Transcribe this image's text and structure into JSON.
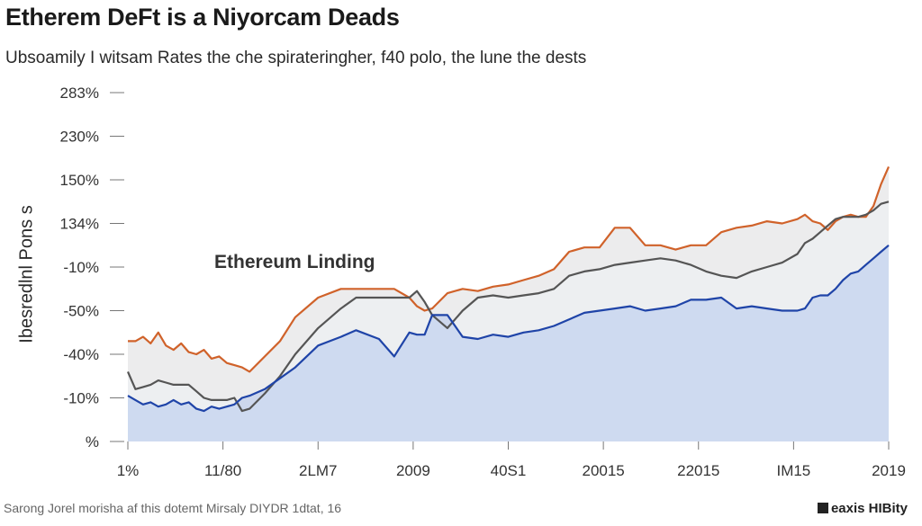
{
  "page": {
    "title": "Etherem DeFt is a Niyorcam Deads",
    "subtitle": "Ubsoamily I witsam Rates the che spirateringher, f40 polo, the lune the dests",
    "source": "Sarong Jorel morisha af this dotemt Mirsaly DIYDR 1dtat, 16",
    "brand": "eaxis HIBity"
  },
  "chart_data": {
    "type": "area",
    "title": "Etherem DeFt is a Niyorcam Deads",
    "subtitle": "Ubsoamily I witsam Rates the che spirateringher, f40 polo, the lune the dests",
    "ylabel": "Ibesredlnl Pons s",
    "xlabel": "",
    "annotation": "Ethereum Linding",
    "ytick_labels": [
      "%",
      "-10%",
      "-40%",
      "-50%",
      "-10%",
      "134%",
      "150%",
      "230%",
      "283%"
    ],
    "xtick_labels": [
      "1%",
      "11/80",
      "2LM7",
      "2009",
      "40S1",
      "20015",
      "22015",
      "IM15",
      "2019"
    ],
    "ylim": [
      0,
      8
    ],
    "xlim": [
      0,
      100
    ],
    "grid": false,
    "colors": {
      "orange": "#d0622a",
      "gray": "#555555",
      "blue": "#1f44a8",
      "blue_fill": "#c9d6ee",
      "orange_fill": "#f2cfc2",
      "gray_fill": "#ebedf0"
    },
    "series": [
      {
        "color": "orange",
        "x": [
          0,
          1,
          2,
          3,
          4,
          5,
          6,
          7,
          8,
          9,
          10,
          11,
          12,
          13,
          14,
          15,
          16,
          18,
          20,
          22,
          25,
          28,
          30,
          33,
          35,
          37,
          38,
          39,
          40,
          42,
          44,
          46,
          48,
          50,
          52,
          54,
          56,
          58,
          60,
          62,
          64,
          66,
          68,
          70,
          72,
          74,
          76,
          78,
          80,
          82,
          84,
          86,
          88,
          89,
          90,
          91,
          92,
          93,
          94,
          95,
          96,
          97,
          98,
          99,
          100
        ],
        "y": [
          2.3,
          2.3,
          2.4,
          2.25,
          2.5,
          2.2,
          2.1,
          2.25,
          2.05,
          2.0,
          2.1,
          1.9,
          1.95,
          1.8,
          1.75,
          1.7,
          1.6,
          1.95,
          2.3,
          2.85,
          3.3,
          3.5,
          3.5,
          3.5,
          3.5,
          3.3,
          3.1,
          3.0,
          3.05,
          3.4,
          3.5,
          3.45,
          3.55,
          3.6,
          3.7,
          3.8,
          3.95,
          4.35,
          4.45,
          4.45,
          4.9,
          4.9,
          4.5,
          4.5,
          4.4,
          4.5,
          4.5,
          4.8,
          4.9,
          4.95,
          5.05,
          5.0,
          5.1,
          5.2,
          5.05,
          5.0,
          4.85,
          5.05,
          5.15,
          5.2,
          5.15,
          5.15,
          5.4,
          5.9,
          6.3
        ]
      },
      {
        "color": "gray",
        "x": [
          0,
          1,
          2,
          3,
          4,
          5,
          6,
          7,
          8,
          9,
          10,
          11,
          12,
          13,
          14,
          15,
          16,
          18,
          20,
          22,
          25,
          28,
          30,
          33,
          35,
          37,
          38,
          39,
          40,
          42,
          44,
          46,
          48,
          50,
          52,
          54,
          56,
          58,
          60,
          62,
          64,
          66,
          68,
          70,
          72,
          74,
          76,
          78,
          80,
          82,
          84,
          86,
          88,
          89,
          90,
          91,
          92,
          93,
          94,
          95,
          96,
          97,
          98,
          99,
          100
        ],
        "y": [
          1.6,
          1.2,
          1.25,
          1.3,
          1.4,
          1.35,
          1.3,
          1.3,
          1.3,
          1.15,
          1.0,
          0.95,
          0.95,
          0.95,
          1.0,
          0.7,
          0.75,
          1.1,
          1.5,
          2.0,
          2.6,
          3.05,
          3.3,
          3.3,
          3.3,
          3.3,
          3.45,
          3.2,
          2.9,
          2.6,
          3.0,
          3.3,
          3.35,
          3.3,
          3.35,
          3.4,
          3.5,
          3.8,
          3.9,
          3.95,
          4.05,
          4.1,
          4.15,
          4.2,
          4.15,
          4.05,
          3.9,
          3.8,
          3.75,
          3.9,
          4.0,
          4.1,
          4.3,
          4.55,
          4.65,
          4.8,
          4.95,
          5.1,
          5.15,
          5.15,
          5.15,
          5.2,
          5.3,
          5.45,
          5.5
        ]
      },
      {
        "color": "blue",
        "x": [
          0,
          1,
          2,
          3,
          4,
          5,
          6,
          7,
          8,
          9,
          10,
          11,
          12,
          13,
          14,
          15,
          16,
          18,
          20,
          22,
          25,
          28,
          30,
          33,
          35,
          37,
          38,
          39,
          40,
          42,
          44,
          46,
          48,
          50,
          52,
          54,
          56,
          58,
          60,
          62,
          64,
          66,
          68,
          70,
          72,
          74,
          76,
          78,
          80,
          82,
          84,
          86,
          88,
          89,
          90,
          91,
          92,
          93,
          94,
          95,
          96,
          97,
          98,
          99,
          100
        ],
        "y": [
          1.05,
          0.95,
          0.85,
          0.9,
          0.8,
          0.85,
          0.95,
          0.85,
          0.9,
          0.75,
          0.7,
          0.8,
          0.75,
          0.8,
          0.85,
          1.0,
          1.05,
          1.2,
          1.45,
          1.7,
          2.2,
          2.4,
          2.55,
          2.35,
          1.95,
          2.5,
          2.45,
          2.45,
          2.9,
          2.9,
          2.4,
          2.35,
          2.45,
          2.4,
          2.5,
          2.55,
          2.65,
          2.8,
          2.95,
          3.0,
          3.05,
          3.1,
          3.0,
          3.05,
          3.1,
          3.25,
          3.25,
          3.3,
          3.05,
          3.1,
          3.05,
          3.0,
          3.0,
          3.05,
          3.3,
          3.35,
          3.35,
          3.5,
          3.7,
          3.85,
          3.9,
          4.05,
          4.2,
          4.35,
          4.5
        ]
      }
    ]
  }
}
